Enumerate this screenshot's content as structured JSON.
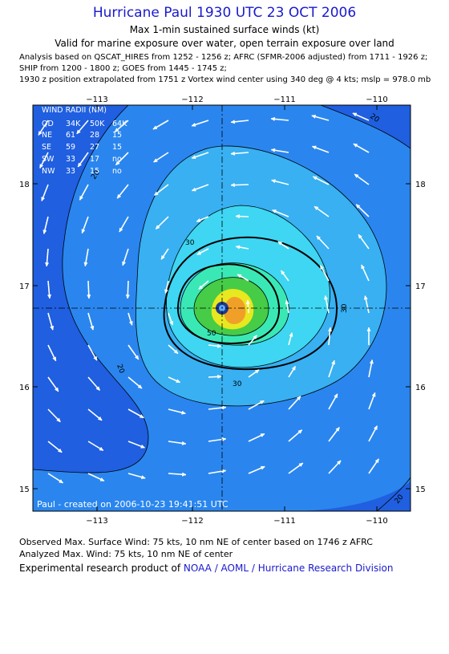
{
  "header": {
    "title": "Hurricane Paul 1930 UTC 23 OCT 2006",
    "subtitle1": "Max 1-min sustained surface winds (kt)",
    "subtitle2": "Valid for marine exposure over water, open terrain exposure over land",
    "info_line1": "Analysis based on  QSCAT_HIRES from 1252 - 1256 z;  AFRC (SFMR-2006 adjusted) from 1711 - 1926 z;",
    "info_line2": "SHIP from 1200 - 1800 z;  GOES from 1445 - 1745 z;",
    "info_line3": "1930 z position extrapolated from 1751 z Vortex wind center using 340 deg @ 4 kts; mslp = 978.0 mb"
  },
  "map": {
    "lon_ticks_top": [
      "−113",
      "−112",
      "−111",
      "−110"
    ],
    "lon_ticks_bottom": [
      "−113",
      "−112",
      "−111",
      "−110"
    ],
    "lat_ticks_left": [
      "18",
      "17",
      "16",
      "15"
    ],
    "lat_ticks_right": [
      "18",
      "17",
      "16",
      "15"
    ],
    "lon_range": [
      -113.6,
      -109.6
    ],
    "lat_range": [
      14.8,
      18.8
    ],
    "center": {
      "lon": -111.66,
      "lat": 16.77
    },
    "contour_labels": [
      "20",
      "20",
      "20",
      "20",
      "30",
      "30",
      "30",
      "50"
    ],
    "watermark": "Paul - created on 2006-10-23 19:41:51 UTC",
    "colors": {
      "outer": "#1f5fe0",
      "level_20": "#2a86ee",
      "level_30": "#38b0f2",
      "level_40": "#3ed6f2",
      "level_50": "#3ae8b6",
      "level_60": "#46cc46",
      "level_70": "#e8e820",
      "level_75": "#f0a028"
    }
  },
  "wind_radii": {
    "title": "WIND RADII (NM)",
    "headers": [
      "QD",
      "34K",
      "50K",
      "64K"
    ],
    "rows": [
      [
        "NE",
        "61",
        "28",
        "15"
      ],
      [
        "SE",
        "59",
        "27",
        "15"
      ],
      [
        "SW",
        "33",
        "17",
        "no"
      ],
      [
        "NW",
        "33",
        "15",
        "no"
      ]
    ]
  },
  "footer": {
    "observed": "Observed Max. Surface Wind: 75 kts, 10 nm NE of center based on 1746 z AFRC",
    "analyzed": "Analyzed Max. Wind: 75 kts, 10 nm NE of center",
    "credit_prefix": "Experimental research product of ",
    "credit_link": "NOAA / AOML / Hurricane Research Division"
  }
}
